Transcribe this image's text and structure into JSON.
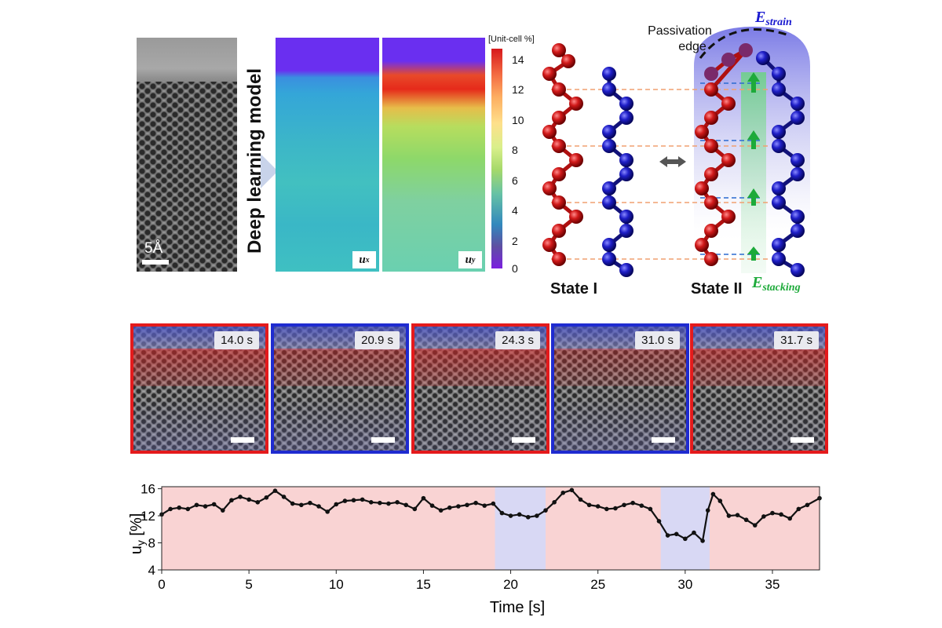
{
  "panel_a": {
    "scale_label": "5Å",
    "model_label": "Deep learning model",
    "maps": [
      {
        "var": "u",
        "sub": "x"
      },
      {
        "var": "u",
        "sub": "y"
      }
    ],
    "colorbar": {
      "title": "[Unit-cell %]",
      "ticks": [
        "14",
        "12",
        "10",
        "8",
        "6",
        "4",
        "2",
        "0"
      ]
    },
    "schematic": {
      "passivation_label_1": "Passivation",
      "passivation_label_2": "edge",
      "strain_energy": {
        "base": "E",
        "sub": "strain"
      },
      "stacking_energy": {
        "base": "E",
        "sub": "stacking"
      },
      "state_1": "State I",
      "state_2": "State II",
      "colors": {
        "state_1_chain": "#d11a1a",
        "state_2_chain": "#1f1fc8",
        "strain_text": "#1a1ad0",
        "stacking_text": "#1daa3a",
        "guide_line": "#f0a070"
      }
    }
  },
  "panel_b": {
    "frames": [
      {
        "time": "14.0 s",
        "state": "red"
      },
      {
        "time": "20.9 s",
        "state": "blue"
      },
      {
        "time": "24.3 s",
        "state": "red"
      },
      {
        "time": "31.0 s",
        "state": "blue"
      },
      {
        "time": "31.7 s",
        "state": "red"
      }
    ]
  },
  "chart_data": {
    "type": "line",
    "xlabel": "Time [s]",
    "ylabel": "u",
    "ylabel_sub": "y",
    "ylabel_unit": "[%]",
    "xlim": [
      0,
      37.7
    ],
    "ylim": [
      4,
      16.3
    ],
    "xticks": [
      0,
      5,
      10,
      15,
      20,
      25,
      30,
      35
    ],
    "yticks": [
      4,
      8,
      12,
      16
    ],
    "background_color": "#f9d3d3",
    "highlight_color": "#d8d8f4",
    "highlight_regions": [
      [
        19.1,
        22.0
      ],
      [
        28.6,
        31.4
      ]
    ],
    "x": [
      0,
      0.5,
      1,
      1.5,
      2,
      2.5,
      3,
      3.5,
      4,
      4.5,
      5,
      5.5,
      6,
      6.5,
      7,
      7.5,
      8,
      8.5,
      9,
      9.5,
      10,
      10.5,
      11,
      11.5,
      12,
      12.5,
      13,
      13.5,
      14,
      14.5,
      15,
      15.5,
      16,
      16.5,
      17,
      17.5,
      18,
      18.5,
      19,
      19.5,
      20,
      20.5,
      21,
      21.5,
      22,
      22.5,
      23,
      23.5,
      24,
      24.5,
      25,
      25.5,
      26,
      26.5,
      27,
      27.5,
      28,
      28.5,
      29,
      29.5,
      30,
      30.5,
      31,
      31.3,
      31.6,
      32,
      32.5,
      33,
      33.5,
      34,
      34.5,
      35,
      35.5,
      36,
      36.5,
      37,
      37.7
    ],
    "y": [
      12.2,
      13.0,
      13.2,
      13.0,
      13.6,
      13.4,
      13.7,
      12.8,
      14.3,
      14.8,
      14.4,
      14.0,
      14.7,
      15.7,
      14.8,
      13.8,
      13.6,
      13.9,
      13.4,
      12.6,
      13.7,
      14.2,
      14.3,
      14.4,
      14.0,
      13.9,
      13.8,
      14.0,
      13.6,
      13.0,
      14.6,
      13.5,
      12.8,
      13.2,
      13.4,
      13.6,
      13.9,
      13.5,
      13.8,
      12.4,
      12.0,
      12.2,
      11.8,
      12.0,
      12.8,
      14.0,
      15.4,
      15.8,
      14.4,
      13.6,
      13.4,
      13.0,
      13.1,
      13.6,
      13.9,
      13.5,
      13.0,
      11.2,
      9.1,
      9.3,
      8.6,
      9.5,
      8.3,
      12.8,
      15.2,
      14.2,
      12.0,
      12.1,
      11.4,
      10.6,
      11.9,
      12.4,
      12.2,
      11.6,
      13.0,
      13.6,
      14.6
    ]
  }
}
